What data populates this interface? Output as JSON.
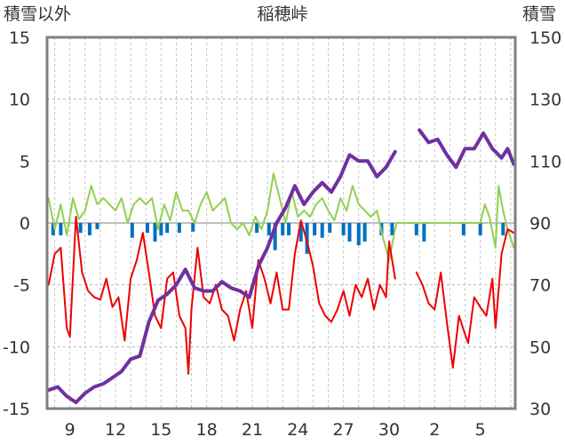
{
  "chart_data": {
    "type": "line",
    "title": "稲穂峠",
    "y_left_label": "積雪以外",
    "y_right_label": "積雪",
    "x_ticks": [
      "9",
      "12",
      "15",
      "18",
      "21",
      "24",
      "27",
      "30",
      "2",
      "5"
    ],
    "y_left_ticks": [
      "15",
      "10",
      "5",
      "0",
      "-5",
      "-10",
      "-15"
    ],
    "y_right_ticks": [
      "150",
      "130",
      "110",
      "90",
      "70",
      "50",
      "30"
    ],
    "ylim_left": [
      -15,
      15
    ],
    "ylim_right": [
      30,
      150
    ],
    "x_range_days": [
      7.5,
      38.3
    ],
    "x_tick_days": [
      9,
      12,
      15,
      18,
      21,
      24,
      27,
      30,
      33,
      36
    ],
    "grid": true,
    "colors": {
      "temperature": "#ee0000",
      "snow_depth": "#7030a0",
      "snow_change": "#92d050",
      "precipitation": "#0070c0",
      "frame": "#808080"
    },
    "series": [
      {
        "key": "snow_depth",
        "axis": "right",
        "points": [
          [
            7.6,
            36
          ],
          [
            8.2,
            37
          ],
          [
            8.8,
            34
          ],
          [
            9.4,
            32
          ],
          [
            10.0,
            35
          ],
          [
            10.6,
            37
          ],
          [
            11.2,
            38
          ],
          [
            11.8,
            40
          ],
          [
            12.4,
            42
          ],
          [
            13.0,
            46
          ],
          [
            13.6,
            47
          ],
          [
            14.2,
            58
          ],
          [
            14.8,
            65
          ],
          [
            15.4,
            67
          ],
          [
            16.0,
            70
          ],
          [
            16.6,
            75
          ],
          [
            17.2,
            69
          ],
          [
            17.8,
            68
          ],
          [
            18.4,
            68
          ],
          [
            19.0,
            71
          ],
          [
            19.6,
            69
          ],
          [
            20.2,
            68
          ],
          [
            20.8,
            66
          ],
          [
            21.4,
            76
          ],
          [
            22.0,
            82
          ],
          [
            22.6,
            90
          ],
          [
            23.2,
            95
          ],
          [
            23.8,
            102
          ],
          [
            24.4,
            96
          ],
          [
            25.0,
            100
          ],
          [
            25.6,
            103
          ],
          [
            26.2,
            100
          ],
          [
            26.8,
            105
          ],
          [
            27.4,
            112
          ],
          [
            28.0,
            110
          ],
          [
            28.6,
            110
          ],
          [
            29.2,
            105
          ],
          [
            29.8,
            108
          ],
          [
            30.4,
            113
          ],
          [
            null,
            null
          ],
          [
            32.0,
            120
          ],
          [
            32.6,
            116
          ],
          [
            33.2,
            117
          ],
          [
            33.8,
            112
          ],
          [
            34.4,
            108
          ],
          [
            35.0,
            114
          ],
          [
            35.6,
            114
          ],
          [
            36.2,
            119
          ],
          [
            36.8,
            114
          ],
          [
            37.4,
            111
          ],
          [
            37.8,
            114
          ],
          [
            38.2,
            109
          ]
        ]
      },
      {
        "key": "temperature",
        "axis": "left",
        "points": [
          [
            7.6,
            -5
          ],
          [
            8.0,
            -2.5
          ],
          [
            8.4,
            -2
          ],
          [
            8.8,
            -8.5
          ],
          [
            9.0,
            -9.2
          ],
          [
            9.4,
            0.5
          ],
          [
            9.8,
            -4
          ],
          [
            10.2,
            -5.5
          ],
          [
            10.6,
            -6
          ],
          [
            11.0,
            -6.2
          ],
          [
            11.4,
            -4.5
          ],
          [
            11.8,
            -6.8
          ],
          [
            12.2,
            -6
          ],
          [
            12.6,
            -9.5
          ],
          [
            13.0,
            -4.5
          ],
          [
            13.4,
            -3
          ],
          [
            13.8,
            -0.8
          ],
          [
            14.2,
            -4
          ],
          [
            14.6,
            -7.5
          ],
          [
            15.0,
            -8.5
          ],
          [
            15.4,
            -4.5
          ],
          [
            15.8,
            -4
          ],
          [
            16.2,
            -7.5
          ],
          [
            16.6,
            -8.5
          ],
          [
            16.8,
            -12.2
          ],
          [
            17.0,
            -7
          ],
          [
            17.4,
            -2
          ],
          [
            17.8,
            -6
          ],
          [
            18.2,
            -6.5
          ],
          [
            18.6,
            -5
          ],
          [
            19.0,
            -7
          ],
          [
            19.4,
            -7.5
          ],
          [
            19.8,
            -9.5
          ],
          [
            20.2,
            -7
          ],
          [
            20.6,
            -5.5
          ],
          [
            21.0,
            -8.5
          ],
          [
            21.4,
            -3
          ],
          [
            21.8,
            -4.5
          ],
          [
            22.2,
            -6.5
          ],
          [
            22.6,
            -4
          ],
          [
            23.0,
            -7
          ],
          [
            23.4,
            -7
          ],
          [
            23.8,
            -2.5
          ],
          [
            24.2,
            0.2
          ],
          [
            24.6,
            -1.5
          ],
          [
            25.0,
            -3.5
          ],
          [
            25.4,
            -6.5
          ],
          [
            25.8,
            -7.5
          ],
          [
            26.2,
            -8
          ],
          [
            26.6,
            -7
          ],
          [
            27.0,
            -5.5
          ],
          [
            27.4,
            -7.5
          ],
          [
            27.8,
            -5
          ],
          [
            28.2,
            -6
          ],
          [
            28.6,
            -4.5
          ],
          [
            29.0,
            -7
          ],
          [
            29.4,
            -5
          ],
          [
            29.8,
            -6
          ],
          [
            30.0,
            -1.5
          ],
          [
            30.4,
            -4.5
          ],
          [
            null,
            null
          ],
          [
            31.8,
            -4
          ],
          [
            32.2,
            -5
          ],
          [
            32.6,
            -6.5
          ],
          [
            33.0,
            -7
          ],
          [
            33.4,
            -4
          ],
          [
            33.8,
            -8
          ],
          [
            34.2,
            -11.7
          ],
          [
            34.6,
            -7.5
          ],
          [
            35.0,
            -9
          ],
          [
            35.2,
            -9.7
          ],
          [
            35.6,
            -6
          ],
          [
            36.0,
            -6.8
          ],
          [
            36.4,
            -7.5
          ],
          [
            36.8,
            -4.5
          ],
          [
            37.0,
            -8.5
          ],
          [
            37.4,
            -2.5
          ],
          [
            37.8,
            -0.5
          ],
          [
            38.2,
            -0.8
          ]
        ]
      },
      {
        "key": "snow_change",
        "axis": "left",
        "points": [
          [
            7.6,
            2
          ],
          [
            8.0,
            -0.5
          ],
          [
            8.4,
            1.5
          ],
          [
            8.8,
            -1
          ],
          [
            9.2,
            2
          ],
          [
            9.6,
            0.3
          ],
          [
            10.0,
            1
          ],
          [
            10.4,
            3
          ],
          [
            10.8,
            1.5
          ],
          [
            11.2,
            2
          ],
          [
            11.6,
            1.5
          ],
          [
            12.0,
            1
          ],
          [
            12.4,
            2
          ],
          [
            12.8,
            0
          ],
          [
            13.2,
            1.5
          ],
          [
            13.6,
            2
          ],
          [
            14.0,
            1.5
          ],
          [
            14.4,
            2
          ],
          [
            14.8,
            -0.5
          ],
          [
            15.2,
            1.5
          ],
          [
            15.6,
            0.2
          ],
          [
            16.0,
            2.5
          ],
          [
            16.4,
            1
          ],
          [
            16.8,
            1
          ],
          [
            17.2,
            0
          ],
          [
            17.6,
            1.5
          ],
          [
            18.0,
            2.5
          ],
          [
            18.4,
            1
          ],
          [
            18.8,
            1.5
          ],
          [
            19.2,
            2
          ],
          [
            19.6,
            0
          ],
          [
            20.0,
            -0.5
          ],
          [
            20.4,
            0
          ],
          [
            20.8,
            -1
          ],
          [
            21.2,
            0.5
          ],
          [
            21.6,
            -0.5
          ],
          [
            22.0,
            1
          ],
          [
            22.4,
            4
          ],
          [
            22.8,
            2
          ],
          [
            23.2,
            0
          ],
          [
            23.6,
            2.5
          ],
          [
            24.0,
            0.5
          ],
          [
            24.4,
            1
          ],
          [
            24.8,
            0.5
          ],
          [
            25.2,
            1.5
          ],
          [
            25.6,
            2
          ],
          [
            26.0,
            1
          ],
          [
            26.4,
            0.2
          ],
          [
            26.8,
            2
          ],
          [
            27.2,
            1
          ],
          [
            27.6,
            3
          ],
          [
            28.0,
            1.5
          ],
          [
            28.4,
            1
          ],
          [
            28.8,
            0.5
          ],
          [
            29.2,
            1
          ],
          [
            29.6,
            -1.2
          ],
          [
            30.0,
            -3
          ],
          [
            30.4,
            -0.5
          ],
          [
            30.5,
            0
          ],
          [
            36.0,
            0
          ],
          [
            36.3,
            1.5
          ],
          [
            36.6,
            0.5
          ],
          [
            37.0,
            -2
          ],
          [
            37.2,
            3
          ],
          [
            37.5,
            1
          ],
          [
            37.8,
            -0.5
          ],
          [
            38.2,
            -2
          ]
        ]
      },
      {
        "key": "precipitation",
        "axis": "left",
        "bars": [
          [
            7.9,
            -1
          ],
          [
            8.4,
            -1
          ],
          [
            9.7,
            -0.8
          ],
          [
            10.3,
            -1
          ],
          [
            10.8,
            -0.5
          ],
          [
            13.1,
            -1.2
          ],
          [
            14.1,
            -0.8
          ],
          [
            14.6,
            -1.5
          ],
          [
            15.0,
            -1
          ],
          [
            15.4,
            -0.8
          ],
          [
            16.2,
            -0.8
          ],
          [
            17.1,
            -0.7
          ],
          [
            21.3,
            -0.8
          ],
          [
            22.1,
            -1
          ],
          [
            22.5,
            -2.2
          ],
          [
            23.0,
            -1
          ],
          [
            23.4,
            -1
          ],
          [
            24.2,
            -1.5
          ],
          [
            24.6,
            -2.5
          ],
          [
            25.1,
            -1
          ],
          [
            25.6,
            -1.2
          ],
          [
            26.1,
            -0.8
          ],
          [
            27.0,
            -1
          ],
          [
            27.4,
            -1.5
          ],
          [
            28.0,
            -1.8
          ],
          [
            28.4,
            -1.5
          ],
          [
            29.5,
            -1
          ],
          [
            30.2,
            -1
          ],
          [
            31.8,
            -1
          ],
          [
            32.3,
            -1.5
          ],
          [
            34.9,
            -1
          ],
          [
            36.0,
            -1
          ],
          [
            37.5,
            -1
          ]
        ]
      }
    ]
  }
}
